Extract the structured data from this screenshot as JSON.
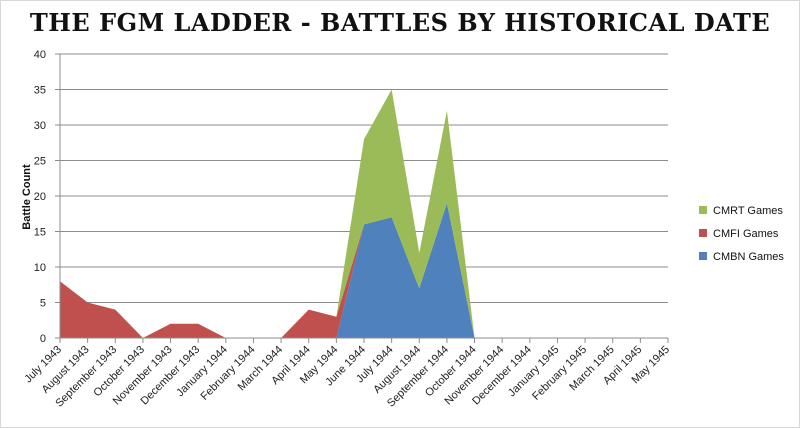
{
  "chart_data": {
    "type": "area",
    "title": "THE FGM LADDER - BATTLES BY HISTORICAL DATE",
    "ylabel": "Battle Count",
    "xlabel": "",
    "ylim": [
      0,
      40
    ],
    "yticks": [
      0,
      5,
      10,
      15,
      20,
      25,
      30,
      35,
      40
    ],
    "stacked": true,
    "grid": "horizontal",
    "legend_position": "right",
    "categories": [
      "July 1943",
      "August 1943",
      "September 1943",
      "October 1943",
      "November 1943",
      "December 1943",
      "January 1944",
      "February 1944",
      "March 1944",
      "April 1944",
      "May 1944",
      "June 1944",
      "July 1944",
      "August 1944",
      "September 1944",
      "October 1944",
      "November 1944",
      "December 1944",
      "January 1945",
      "February 1945",
      "March 1945",
      "April 1945",
      "May 1945"
    ],
    "series": [
      {
        "name": "CMBN Games",
        "color": "#4f81bd",
        "values": [
          0,
          0,
          0,
          0,
          0,
          0,
          0,
          0,
          0,
          0,
          0,
          16,
          17,
          7,
          19,
          0,
          0,
          0,
          0,
          0,
          0,
          0,
          0
        ]
      },
      {
        "name": "CMFI Games",
        "color": "#c0504d",
        "values": [
          8,
          5,
          4,
          0,
          2,
          2,
          0,
          0,
          0,
          4,
          3,
          0,
          0,
          0,
          0,
          0,
          0,
          0,
          0,
          0,
          0,
          0,
          0
        ]
      },
      {
        "name": "CMRT Games",
        "color": "#9bbb59",
        "values": [
          0,
          0,
          0,
          0,
          0,
          0,
          0,
          0,
          0,
          0,
          0,
          12,
          18,
          5,
          13,
          0,
          0,
          0,
          0,
          0,
          0,
          0,
          0
        ]
      }
    ],
    "legend_order": [
      "CMRT Games",
      "CMFI Games",
      "CMBN Games"
    ]
  }
}
